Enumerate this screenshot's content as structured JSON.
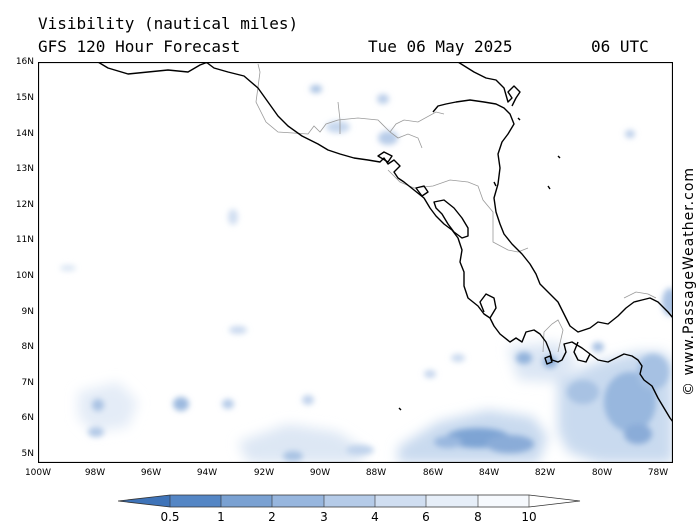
{
  "header": {
    "title": "Visibility (nautical miles)",
    "subtitle": "GFS 120 Hour Forecast",
    "date": "Tue 06 May 2025",
    "time": "06 UTC"
  },
  "axes": {
    "lat_labels": [
      "16N",
      "15N",
      "14N",
      "13N",
      "12N",
      "11N",
      "10N",
      "9N",
      "8N",
      "7N",
      "6N",
      "5N"
    ],
    "lon_labels": [
      "100W",
      "98W",
      "96W",
      "94W",
      "92W",
      "90W",
      "88W",
      "86W",
      "84W",
      "82W",
      "80W",
      "78W"
    ]
  },
  "credit": "© www.PassageWeather.com",
  "legend": {
    "labels": [
      "0.5",
      "1",
      "2",
      "3",
      "4",
      "6",
      "8",
      "10"
    ],
    "colors": [
      "#3e73b8",
      "#5486c5",
      "#7aa1d2",
      "#97b6de",
      "#b5cbe8",
      "#d0def1",
      "#e6eef8",
      "#f6f9fd"
    ]
  },
  "colors": {
    "coast": "#000000",
    "border": "#9a9a9a",
    "frame": "#000000"
  }
}
